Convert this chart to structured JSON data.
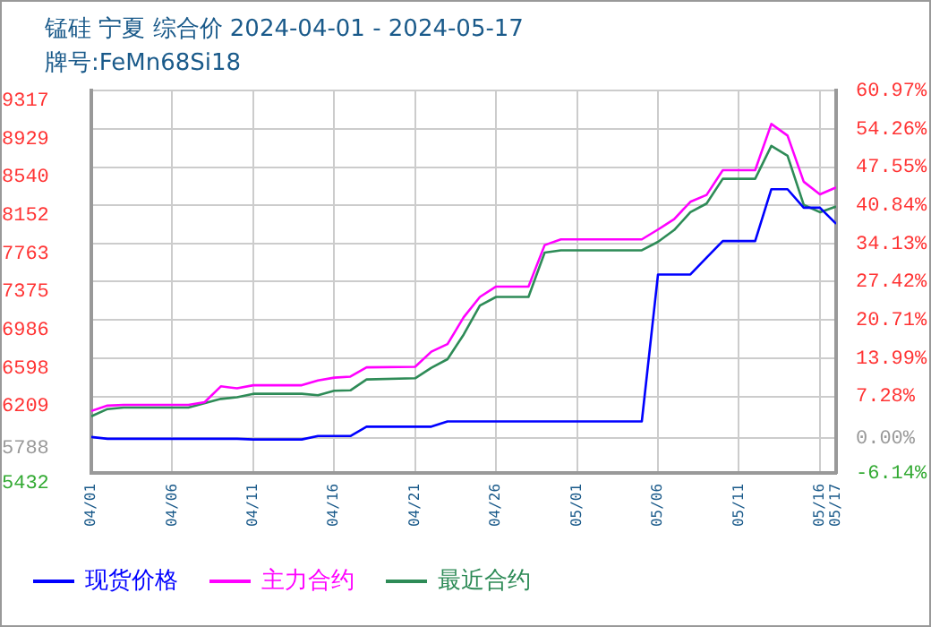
{
  "chart_data": {
    "type": "line",
    "title": "锰硅 宁夏 综合价 2024-04-01 - 2024-05-17",
    "subtitle": "牌号:FeMn68Si18",
    "xlim": [
      "2024-04-01",
      "2024-05-17"
    ],
    "xticks": [
      {
        "value": "2024-04-01",
        "label": "04/01"
      },
      {
        "value": "2024-04-06",
        "label": "04/06"
      },
      {
        "value": "2024-04-11",
        "label": "04/11"
      },
      {
        "value": "2024-04-16",
        "label": "04/16"
      },
      {
        "value": "2024-04-21",
        "label": "04/21"
      },
      {
        "value": "2024-04-26",
        "label": "04/26"
      },
      {
        "value": "2024-05-01",
        "label": "05/01"
      },
      {
        "value": "2024-05-06",
        "label": "05/06"
      },
      {
        "value": "2024-05-11",
        "label": "05/11"
      },
      {
        "value": "2024-05-16",
        "label": "05/16"
      },
      {
        "value": "2024-05-17",
        "label": "05/17"
      }
    ],
    "ylim": [
      5432,
      9317
    ],
    "yticks": [
      5432,
      5788,
      6209,
      6598,
      6986,
      7375,
      7763,
      8152,
      8540,
      8929,
      9317
    ],
    "y2lim": [
      -6.14,
      60.97
    ],
    "y2ticks": [
      {
        "value": -6.14,
        "label": "-6.14%"
      },
      {
        "value": 0,
        "label": "0.00%"
      },
      {
        "value": 7.28,
        "label": "7.28%"
      },
      {
        "value": 13.99,
        "label": "13.99%"
      },
      {
        "value": 20.71,
        "label": "20.71%"
      },
      {
        "value": 27.42,
        "label": "27.42%"
      },
      {
        "value": 34.13,
        "label": "34.13%"
      },
      {
        "value": 40.84,
        "label": "40.84%"
      },
      {
        "value": 47.55,
        "label": "47.55%"
      },
      {
        "value": 54.26,
        "label": "54.26%"
      },
      {
        "value": 60.97,
        "label": "60.97%"
      }
    ],
    "grid": true,
    "legend": "bottom",
    "marker": "none",
    "line_style": "solid",
    "series": [
      {
        "name": "现货价格",
        "color": "#0000ff",
        "x": [
          "2024-04-01",
          "2024-04-02",
          "2024-04-10",
          "2024-04-11",
          "2024-04-14",
          "2024-04-15",
          "2024-04-17",
          "2024-04-18",
          "2024-04-22",
          "2024-04-23",
          "2024-05-05",
          "2024-05-06",
          "2024-05-08",
          "2024-05-09",
          "2024-05-10",
          "2024-05-12",
          "2024-05-13",
          "2024-05-14",
          "2024-05-15",
          "2024-05-16",
          "2024-05-17"
        ],
        "values": [
          5796,
          5778,
          5778,
          5771,
          5771,
          5806,
          5806,
          5901,
          5901,
          5954,
          5954,
          7448,
          7448,
          7620,
          7788,
          7788,
          8315,
          8315,
          8127,
          8127,
          7963
        ]
      },
      {
        "name": "主力合约",
        "color": "#ff00ff",
        "x": [
          "2024-04-01",
          "2024-04-02",
          "2024-04-03",
          "2024-04-07",
          "2024-04-08",
          "2024-04-09",
          "2024-04-10",
          "2024-04-11",
          "2024-04-14",
          "2024-04-15",
          "2024-04-16",
          "2024-04-17",
          "2024-04-18",
          "2024-04-21",
          "2024-04-22",
          "2024-04-23",
          "2024-04-24",
          "2024-04-25",
          "2024-04-26",
          "2024-04-28",
          "2024-04-29",
          "2024-04-30",
          "2024-05-05",
          "2024-05-06",
          "2024-05-07",
          "2024-05-08",
          "2024-05-09",
          "2024-05-10",
          "2024-05-12",
          "2024-05-13",
          "2024-05-14",
          "2024-05-15",
          "2024-05-16",
          "2024-05-17"
        ],
        "values": [
          6060,
          6115,
          6123,
          6123,
          6150,
          6311,
          6291,
          6322,
          6322,
          6370,
          6399,
          6410,
          6504,
          6510,
          6663,
          6740,
          7014,
          7220,
          7325,
          7325,
          7747,
          7805,
          7805,
          7905,
          8011,
          8187,
          8257,
          8508,
          8508,
          8978,
          8860,
          8391,
          8262,
          8333
        ]
      },
      {
        "name": "最近合约",
        "color": "#2e8b57",
        "x": [
          "2024-04-01",
          "2024-04-02",
          "2024-04-03",
          "2024-04-07",
          "2024-04-09",
          "2024-04-10",
          "2024-04-11",
          "2024-04-14",
          "2024-04-15",
          "2024-04-16",
          "2024-04-17",
          "2024-04-18",
          "2024-04-21",
          "2024-04-22",
          "2024-04-23",
          "2024-04-24",
          "2024-04-25",
          "2024-04-26",
          "2024-04-28",
          "2024-04-29",
          "2024-04-30",
          "2024-05-05",
          "2024-05-06",
          "2024-05-07",
          "2024-05-08",
          "2024-05-09",
          "2024-05-10",
          "2024-05-12",
          "2024-05-13",
          "2024-05-14",
          "2024-05-15",
          "2024-05-16",
          "2024-05-17"
        ],
        "values": [
          6007,
          6080,
          6095,
          6095,
          6183,
          6200,
          6235,
          6235,
          6220,
          6266,
          6270,
          6381,
          6393,
          6500,
          6587,
          6838,
          7132,
          7220,
          7220,
          7670,
          7694,
          7694,
          7780,
          7900,
          8081,
          8169,
          8421,
          8421,
          8755,
          8655,
          8156,
          8081,
          8139
        ]
      }
    ]
  }
}
